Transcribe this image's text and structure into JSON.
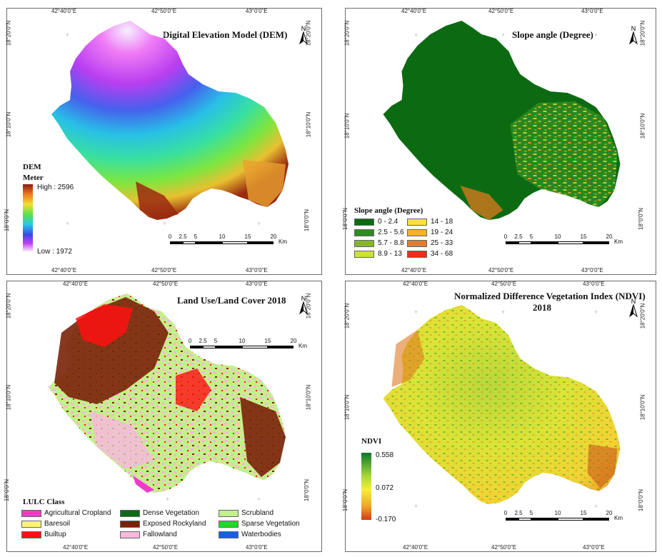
{
  "coords": {
    "lon": [
      "42°40'0\"E",
      "42°50'0\"E",
      "43°0'0\"E"
    ],
    "lat": [
      "18°20'0\"N",
      "18°10'0\"N",
      "18°0'0\"N"
    ]
  },
  "north_label": "N",
  "scale": {
    "ticks": [
      "0",
      "2.5",
      "5",
      "10",
      "15",
      "20"
    ],
    "unit": "Km"
  },
  "dem": {
    "title": "Digital Elevation Model (DEM)",
    "legend_title": "DEM",
    "legend_subtitle": "Meter",
    "high": "High : 2596",
    "low": "Low : 1972"
  },
  "slope": {
    "title": "Slope angle (Degree)",
    "legend_title": "Slope angle (Degree)",
    "classes": [
      {
        "label": "0 - 2.4",
        "color": "#0c6b12"
      },
      {
        "label": "2.5 - 5.6",
        "color": "#2e8b22"
      },
      {
        "label": "5.7 - 8.8",
        "color": "#86b81e"
      },
      {
        "label": "8.9 - 13",
        "color": "#cde13c"
      },
      {
        "label": "14 - 18",
        "color": "#f6e23a"
      },
      {
        "label": "19 - 24",
        "color": "#f4b22a"
      },
      {
        "label": "25 - 33",
        "color": "#ef7a1e"
      },
      {
        "label": "34 - 68",
        "color": "#e2321c"
      }
    ]
  },
  "lulc": {
    "title": "Land Use/Land Cover 2018",
    "legend_title": "LULC Class",
    "classes": [
      {
        "label": "Agricultural Cropland",
        "color": "#ee3cc8"
      },
      {
        "label": "Baresoil",
        "color": "#fff27a"
      },
      {
        "label": "Builtup",
        "color": "#ff1010"
      },
      {
        "label": "Dense Vegetation",
        "color": "#0e6b1a"
      },
      {
        "label": "Exposed Rockyland",
        "color": "#7a2208"
      },
      {
        "label": "Fallowland",
        "color": "#f6b9dc"
      },
      {
        "label": "Scrubland",
        "color": "#c4f08a"
      },
      {
        "label": "Sparse Vegetation",
        "color": "#22d82a"
      },
      {
        "label": "Waterbodies",
        "color": "#1a5ee0"
      }
    ]
  },
  "ndvi": {
    "title_line1": "Normalized Difference Vegetation Index (NDVI)",
    "title_line2": "2018",
    "legend_title": "NDVI",
    "max": "0.558",
    "mid": "0.072",
    "min": "-0.170"
  }
}
